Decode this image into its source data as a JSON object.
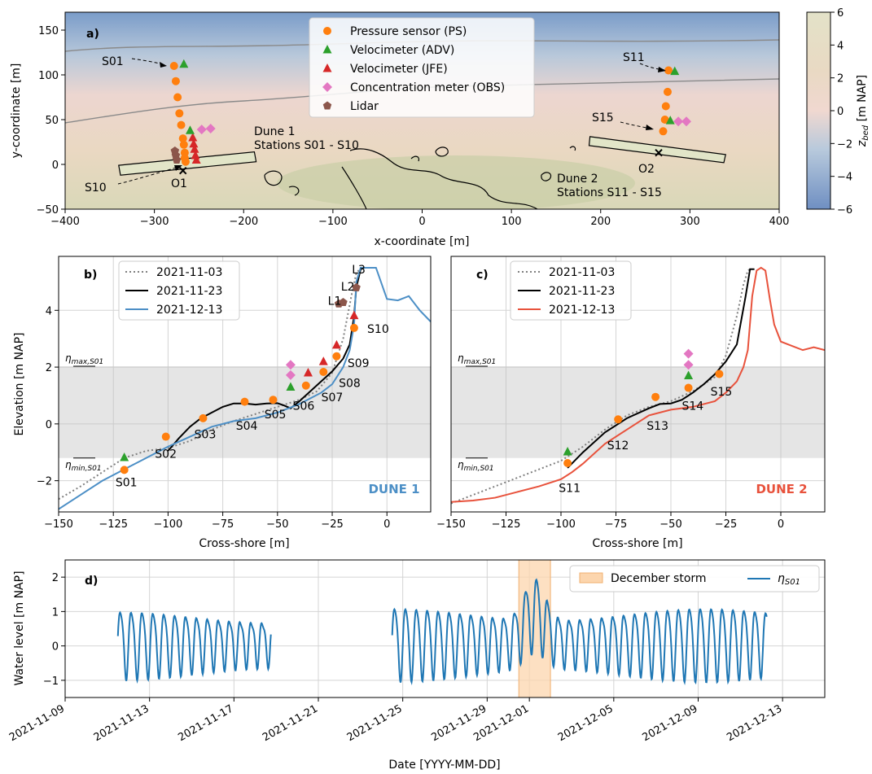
{
  "chart_data": [
    {
      "panel": "a)",
      "type": "scatter",
      "xlabel": "x-coordinate [m]",
      "ylabel": "y-coordinate [m]",
      "xlim": [
        -400,
        400
      ],
      "ylim": [
        -50,
        170
      ],
      "xticks": [
        "−400",
        "−300",
        "−200",
        "−100",
        "0",
        "100",
        "200",
        "300",
        "400"
      ],
      "yticks": [
        "−50",
        "0",
        "50",
        "100",
        "150"
      ],
      "colorbar": {
        "label": "z_bed [m NAP]",
        "range": [
          -6,
          6
        ],
        "ticks": [
          "6",
          "4",
          "2",
          "0",
          "−2",
          "−4",
          "−6"
        ],
        "colors": [
          "#6f8fc2",
          "#f0d8d0",
          "#e3e2c8"
        ]
      },
      "legend": [
        "Pressure sensor (PS)",
        "Velocimeter (ADV)",
        "Velocimeter (JFE)",
        "Concentration meter (OBS)",
        "Lidar"
      ],
      "legend_placement": "top-center",
      "colors": {
        "ps": "#ff7f0e",
        "adv": "#2ca02c",
        "jfe": "#d62728",
        "obs": "#e377c2",
        "lidar": "#8c564b"
      },
      "annotations": {
        "s01": "S01",
        "s10": "S10",
        "s11": "S11",
        "s15": "S15",
        "o1": "O1",
        "o2": "O2",
        "dune1": "Dune 1",
        "dune1_st": "Stations S01 - S10",
        "dune2": "Dune 2",
        "dune2_st": "Stations S11 - S15"
      },
      "ps": [
        [
          -278,
          110
        ],
        [
          -276,
          93
        ],
        [
          -274,
          75
        ],
        [
          -272,
          57
        ],
        [
          -270,
          44
        ],
        [
          -268,
          29
        ],
        [
          -267,
          22
        ],
        [
          -266,
          13
        ],
        [
          -266,
          7
        ],
        [
          -265,
          3
        ],
        [
          270,
          37
        ],
        [
          272,
          50
        ],
        [
          273,
          65
        ],
        [
          275,
          81
        ],
        [
          276,
          105
        ]
      ],
      "adv": [
        [
          -267,
          112
        ],
        [
          -260,
          38
        ],
        [
          283,
          104
        ],
        [
          278,
          49
        ]
      ],
      "jfe": [
        [
          -257,
          30
        ],
        [
          -256,
          23
        ],
        [
          -255,
          17
        ],
        [
          -254,
          10
        ],
        [
          -253,
          5
        ]
      ],
      "obs": [
        [
          -247,
          39
        ],
        [
          -237,
          40
        ],
        [
          287,
          48
        ],
        [
          296,
          48
        ]
      ],
      "lidar": [
        [
          -277,
          15
        ],
        [
          -276,
          10
        ],
        [
          -275,
          5
        ]
      ],
      "grid": false
    },
    {
      "panel": "b)",
      "type": "line",
      "xlabel": "Cross-shore [m]",
      "ylabel": "Elevation [m NAP]",
      "xlim": [
        -150,
        20
      ],
      "ylim": [
        -3.1,
        5.9
      ],
      "xticks": [
        "−150",
        "−125",
        "−100",
        "−75",
        "−50",
        "−25",
        "0"
      ],
      "yticks": [
        "−2",
        "0",
        "2",
        "4"
      ],
      "band": {
        "from": -1.2,
        "to": 2.03,
        "max_label": "η_max,S01",
        "min_label": "η_min,S01"
      },
      "legend_placement": "top-left",
      "series": [
        {
          "name": "2021-11-03",
          "style": "dotted",
          "color": "#808080",
          "x": [
            -150,
            -140,
            -130,
            -120,
            -110,
            -100,
            -90,
            -80,
            -70,
            -60,
            -50,
            -40,
            -32,
            -25,
            -20,
            -16,
            -14,
            -12,
            -10,
            -5
          ],
          "y": [
            -2.65,
            -2.2,
            -1.7,
            -1.2,
            -0.95,
            -0.85,
            -0.6,
            -0.2,
            0.1,
            0.35,
            0.6,
            0.85,
            1.15,
            1.8,
            3.0,
            4.6,
            5.3,
            5.5,
            5.5,
            5.5
          ]
        },
        {
          "name": "2021-11-23",
          "style": "solid",
          "color": "#000000",
          "x": [
            -100,
            -95,
            -90,
            -85,
            -80,
            -75,
            -70,
            -65,
            -60,
            -55,
            -50,
            -47,
            -44,
            -40,
            -35,
            -30,
            -25,
            -20,
            -17,
            -15,
            -14,
            -12,
            -10
          ],
          "y": [
            -0.95,
            -0.5,
            -0.1,
            0.2,
            0.4,
            0.6,
            0.72,
            0.72,
            0.68,
            0.72,
            0.73,
            0.65,
            0.55,
            0.8,
            1.15,
            1.5,
            1.85,
            2.3,
            2.8,
            3.8,
            4.8,
            5.45,
            5.5
          ]
        },
        {
          "name": "2021-12-13",
          "style": "solid",
          "color": "#4c8fc6",
          "x": [
            -150,
            -140,
            -130,
            -120,
            -110,
            -100,
            -90,
            -80,
            -70,
            -60,
            -50,
            -40,
            -30,
            -25,
            -20,
            -17,
            -15,
            -14,
            -12,
            -10,
            -5,
            0,
            5,
            10,
            15,
            20
          ],
          "y": [
            -3.0,
            -2.5,
            -2.0,
            -1.6,
            -1.2,
            -0.8,
            -0.45,
            -0.1,
            0.1,
            0.2,
            0.4,
            0.7,
            1.1,
            1.4,
            2.0,
            2.6,
            3.5,
            5.0,
            5.5,
            5.5,
            5.5,
            4.4,
            4.35,
            4.5,
            4.0,
            3.6
          ]
        }
      ],
      "ps": [
        [
          -120,
          -1.62
        ],
        [
          -101,
          -0.45
        ],
        [
          -84,
          0.2
        ],
        [
          -65,
          0.78
        ],
        [
          -52,
          0.85
        ],
        [
          -37,
          1.35
        ],
        [
          -29,
          1.83
        ],
        [
          -23,
          2.38
        ],
        [
          -15,
          3.38
        ]
      ],
      "adv": [
        [
          -120,
          -1.18
        ],
        [
          -44,
          1.3
        ]
      ],
      "jfe": [
        [
          -36,
          1.8
        ],
        [
          -29,
          2.2
        ],
        [
          -23,
          2.78
        ],
        [
          -15,
          3.82
        ]
      ],
      "obs": [
        [
          -44,
          1.72
        ],
        [
          -44,
          2.08
        ]
      ],
      "lidar": [
        [
          -22,
          4.23
        ],
        [
          -20,
          4.28
        ],
        [
          -14,
          4.8
        ]
      ],
      "station_labels": [
        [
          "S01",
          -124,
          -2.2
        ],
        [
          "S02",
          -106,
          -1.2
        ],
        [
          "S03",
          -88,
          -0.5
        ],
        [
          "S04",
          -69,
          -0.2
        ],
        [
          "S05",
          -56,
          0.2
        ],
        [
          "S06",
          -43,
          0.5
        ],
        [
          "S07",
          -30,
          0.8
        ],
        [
          "S08",
          -22,
          1.3
        ],
        [
          "S09",
          -18,
          2.0
        ],
        [
          "S10",
          -9,
          3.2
        ],
        [
          "L1",
          -27,
          4.2
        ],
        [
          "L2",
          -21,
          4.7
        ],
        [
          "L3",
          -16,
          5.3
        ]
      ],
      "watermark": "DUNE 1",
      "grid": true
    },
    {
      "panel": "c)",
      "type": "line",
      "xlabel": "Cross-shore [m]",
      "xlim": [
        -150,
        20
      ],
      "ylim": [
        -3.1,
        5.9
      ],
      "xticks": [
        "−150",
        "−125",
        "−100",
        "−75",
        "−50",
        "−25",
        "0"
      ],
      "band": {
        "from": -1.2,
        "to": 2.03,
        "max_label": "η_max,S01",
        "min_label": "η_min,S01"
      },
      "legend_placement": "top-left",
      "series": [
        {
          "name": "2021-11-03",
          "style": "dotted",
          "color": "#808080",
          "x": [
            -150,
            -140,
            -130,
            -120,
            -110,
            -100,
            -90,
            -80,
            -70,
            -60,
            -50,
            -40,
            -30,
            -25,
            -20,
            -17,
            -15,
            -14
          ],
          "y": [
            -2.8,
            -2.5,
            -2.2,
            -1.9,
            -1.6,
            -1.3,
            -0.8,
            -0.2,
            0.3,
            0.6,
            0.8,
            1.15,
            1.65,
            2.4,
            3.8,
            4.9,
            5.4,
            5.45
          ]
        },
        {
          "name": "2021-11-23",
          "style": "solid",
          "color": "#000000",
          "x": [
            -97,
            -90,
            -80,
            -70,
            -60,
            -55,
            -50,
            -45,
            -40,
            -35,
            -30,
            -25,
            -20,
            -16,
            -14,
            -13,
            -12
          ],
          "y": [
            -1.55,
            -1.0,
            -0.3,
            0.2,
            0.55,
            0.7,
            0.72,
            0.85,
            1.1,
            1.4,
            1.75,
            2.2,
            2.8,
            4.5,
            5.45,
            5.45,
            5.45
          ]
        },
        {
          "name": "2021-12-13",
          "style": "solid",
          "color": "#e8523c",
          "x": [
            -150,
            -140,
            -130,
            -120,
            -110,
            -100,
            -95,
            -90,
            -80,
            -70,
            -60,
            -50,
            -40,
            -30,
            -25,
            -20,
            -17,
            -15,
            -13,
            -11,
            -9,
            -7,
            -5,
            -3,
            0,
            5,
            10,
            15,
            20
          ],
          "y": [
            -2.75,
            -2.7,
            -2.6,
            -2.4,
            -2.2,
            -1.95,
            -1.7,
            -1.4,
            -0.7,
            -0.2,
            0.3,
            0.5,
            0.6,
            0.8,
            1.1,
            1.5,
            2.0,
            2.6,
            4.5,
            5.4,
            5.5,
            5.4,
            4.4,
            3.5,
            2.9,
            2.75,
            2.6,
            2.7,
            2.6
          ]
        }
      ],
      "ps": [
        [
          -97,
          -1.38
        ],
        [
          -74,
          0.16
        ],
        [
          -57,
          0.95
        ],
        [
          -42,
          1.27
        ],
        [
          -28,
          1.76
        ]
      ],
      "adv": [
        [
          -97,
          -0.98
        ],
        [
          -42,
          1.7
        ]
      ],
      "obs": [
        [
          -42,
          2.08
        ],
        [
          -42,
          2.47
        ]
      ],
      "station_labels": [
        [
          "S11",
          -101,
          -2.4
        ],
        [
          "S12",
          -79,
          -0.9
        ],
        [
          "S13",
          -61,
          -0.2
        ],
        [
          "S14",
          -45,
          0.5
        ],
        [
          "S15",
          -32,
          1.0
        ]
      ],
      "watermark": "DUNE 2",
      "grid": true
    },
    {
      "panel": "d)",
      "type": "line",
      "xlabel": "Date [YYYY-MM-DD]",
      "ylabel": "Water level [m NAP]",
      "xlim": [
        "2021-11-09",
        "2021-12-15"
      ],
      "ylim": [
        -1.5,
        2.5
      ],
      "xticks": [
        "2021-11-09",
        "2021-11-13",
        "2021-11-17",
        "2021-11-21",
        "2021-11-25",
        "2021-11-29",
        "2021-12-01",
        "2021-12-05",
        "2021-12-09",
        "2021-12-13"
      ],
      "yticks": [
        "−1",
        "0",
        "1",
        "2"
      ],
      "legend_placement": "top-right",
      "storm": {
        "name": "December storm",
        "from": "2021-11-30T12:00",
        "to": "2021-12-02T00:00",
        "color": "#fcd5ad"
      },
      "series": [
        {
          "name": "η_S01",
          "color": "#1f77b4",
          "segments": [
            {
              "from": "2021-11-11T12:00",
              "to": "2021-11-18T18:00",
              "peak": 1.1,
              "trough": -0.85
            },
            {
              "from": "2021-11-24T12:00",
              "to": "2021-12-12T06:00",
              "peak": 1.2,
              "trough": -0.9,
              "storm_peak": 2.0
            }
          ]
        }
      ],
      "grid": true
    }
  ]
}
